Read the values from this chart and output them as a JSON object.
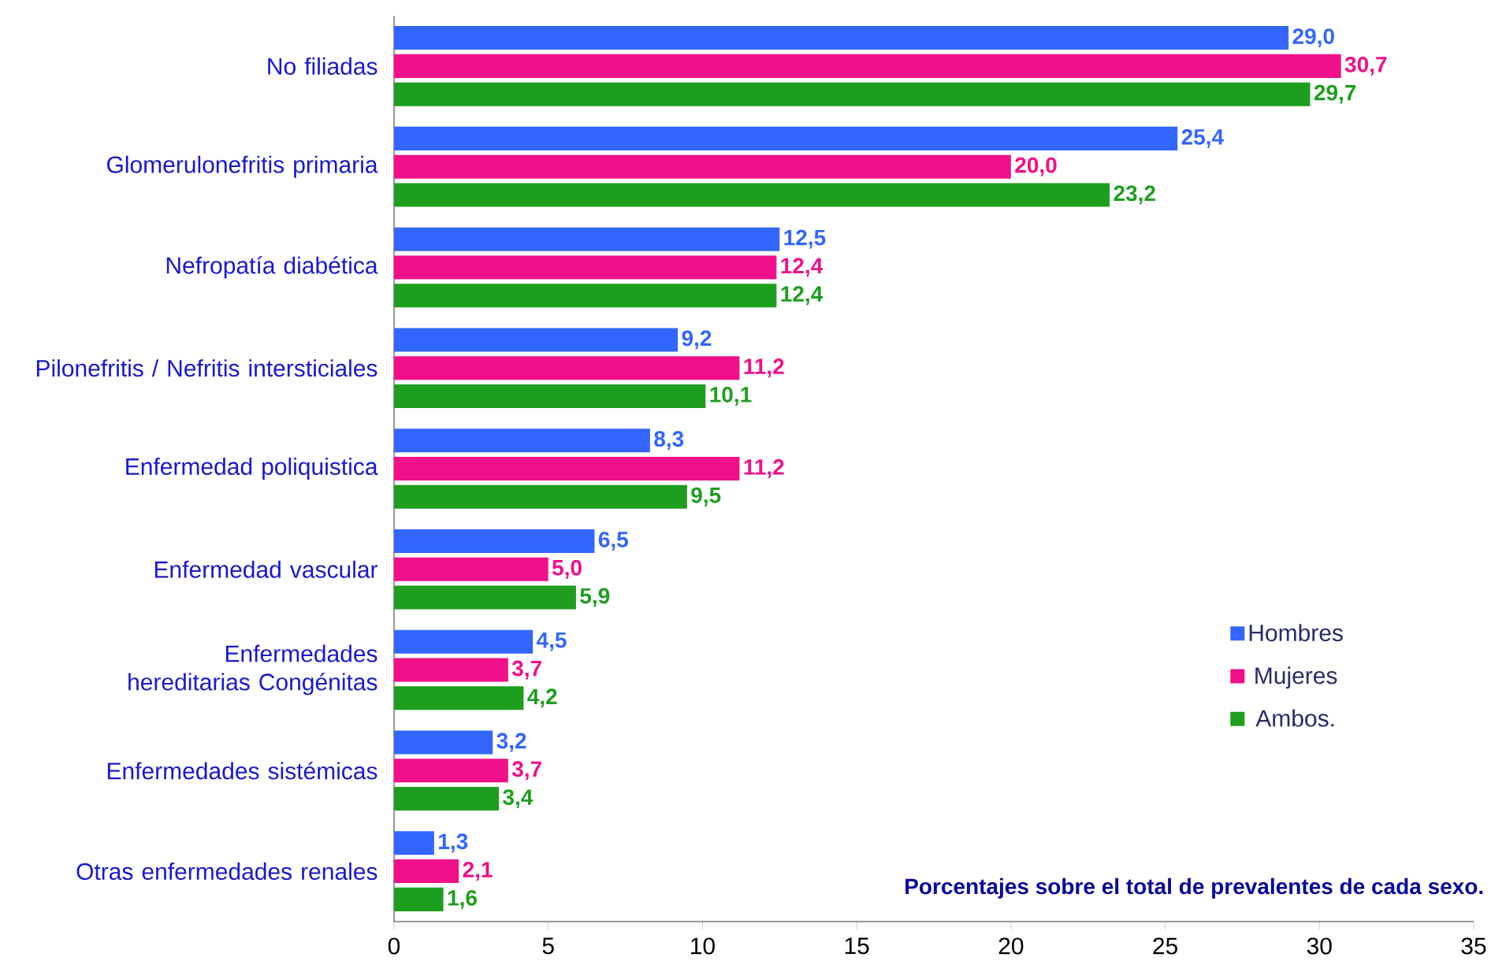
{
  "chart_data": {
    "type": "bar",
    "orientation": "horizontal",
    "categories": [
      "No filiadas",
      "Glomerulonefritis primaria",
      "Nefropatía diabética",
      "Pilonefritis / Nefritis intersticiales",
      "Enfermedad poliquistica",
      "Enfermedad vascular",
      "Enfermedades hereditarias Congénitas",
      "Enfermedades sistémicas",
      "Otras enfermedades renales"
    ],
    "series": [
      {
        "name": "Hombres",
        "color": "#3366ff",
        "values": [
          29.0,
          25.4,
          12.5,
          9.2,
          8.3,
          6.5,
          4.5,
          3.2,
          1.3
        ],
        "value_labels": [
          "29,0",
          "25,4",
          "12,5",
          "9,2",
          "8,3",
          "6,5",
          "4,5",
          "3,2",
          "1,3"
        ]
      },
      {
        "name": "Mujeres",
        "color": "#f0108a",
        "values": [
          30.7,
          20.0,
          12.4,
          11.2,
          11.2,
          5.0,
          3.7,
          3.7,
          2.1
        ],
        "value_labels": [
          "30,7",
          "20,0",
          "12,4",
          "11,2",
          "11,2",
          "5,0",
          "3,7",
          "3,7",
          "2,1"
        ]
      },
      {
        "name": "Ambos.",
        "color": "#1e9e1e",
        "values": [
          29.7,
          23.2,
          12.4,
          10.1,
          9.5,
          5.9,
          4.2,
          3.4,
          1.6
        ],
        "value_labels": [
          "29,7",
          "23,2",
          "12,4",
          "10,1",
          "9,5",
          "5,9",
          "4,2",
          "3,4",
          "1,6"
        ]
      }
    ],
    "xlim": [
      0,
      35
    ],
    "xticks": [
      0,
      5,
      10,
      15,
      20,
      25,
      30,
      35
    ],
    "legend": "right",
    "grid": false,
    "annotations": [
      "Porcentajes sobre el total de prevalentes de cada sexo."
    ]
  }
}
